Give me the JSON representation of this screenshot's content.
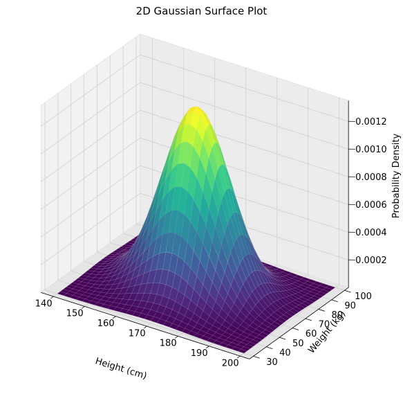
{
  "chart_data": {
    "type": "surface",
    "title": "2D Gaussian Surface Plot",
    "xlabel": "Height (cm)",
    "ylabel": "Weight (kg)",
    "zlabel": "Probability Density",
    "x_ticks": [
      140,
      150,
      160,
      170,
      180,
      190,
      200
    ],
    "y_ticks": [
      30,
      40,
      50,
      60,
      70,
      80,
      90,
      100
    ],
    "z_ticks": [
      0.0002,
      0.0004,
      0.0006,
      0.0008,
      0.001,
      0.0012
    ],
    "z_tick_labels": [
      "0.0002",
      "0.0004",
      "0.0006",
      "0.0008",
      "0.0010",
      "0.0012"
    ],
    "xlim": [
      140,
      200
    ],
    "ylim": [
      30,
      100
    ],
    "zlim": [
      0,
      0.00135
    ],
    "distribution": {
      "x_mean": 170,
      "y_mean": 65,
      "x_std": 10,
      "y_std": 12,
      "peak_density": 0.00133
    },
    "grid_points": 30,
    "colormap": "viridis",
    "colormap_stops": [
      "#440154",
      "#482878",
      "#3e4989",
      "#31688e",
      "#26828e",
      "#1f9e89",
      "#35b779",
      "#6ece58",
      "#b5de2b",
      "#fde725"
    ],
    "grid": true
  }
}
